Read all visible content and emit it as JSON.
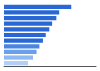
{
  "chart_data": {
    "type": "bar",
    "orientation": "horizontal",
    "categories": [
      null,
      null,
      null,
      null,
      null,
      null,
      null,
      null,
      null,
      null,
      null
    ],
    "values": [
      95,
      78,
      74,
      68,
      64,
      59,
      55,
      50,
      46,
      41,
      34
    ],
    "colors": [
      "#2968d4",
      "#2968d4",
      "#2968d4",
      "#2968d4",
      "#2968d4",
      "#2968d4",
      "#2968d4",
      "#4a85e0",
      "#6aa0ea",
      "#8dbaf2",
      "#b0d0f7"
    ],
    "xlim": [
      0,
      130
    ],
    "grid": false,
    "tick_labels": false
  }
}
